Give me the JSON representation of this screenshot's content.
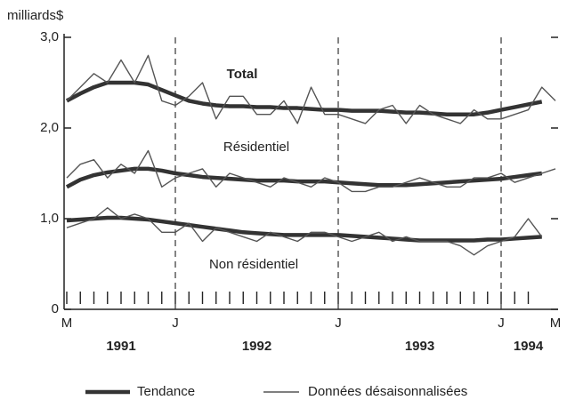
{
  "chart_data": {
    "type": "line",
    "ylabel": "milliards$",
    "categories": [
      "M",
      null,
      null,
      null,
      null,
      null,
      null,
      null,
      "J",
      null,
      null,
      null,
      null,
      null,
      null,
      null,
      null,
      null,
      null,
      null,
      "J",
      null,
      null,
      null,
      null,
      null,
      null,
      null,
      null,
      null,
      null,
      null,
      "J",
      null,
      null,
      null,
      "M"
    ],
    "years": [
      "1991",
      "1992",
      "1993",
      "1994"
    ],
    "annotations": [
      "Total",
      "Résidentiel",
      "Non résidentiel"
    ],
    "ylim": [
      0,
      3
    ],
    "yticks": [
      0,
      {
        "value": 1,
        "label": "1,0"
      },
      {
        "value": 2,
        "label": "2,0"
      },
      {
        "value": 3,
        "label": "3,0"
      }
    ],
    "series": [
      {
        "name": "Tendance",
        "color": "#333333",
        "values": [
          2.3,
          2.38,
          2.45,
          2.5,
          2.5,
          2.5,
          2.48,
          2.42,
          2.36,
          2.3,
          2.27,
          2.25,
          2.24,
          2.24,
          2.23,
          2.23,
          2.22,
          2.22,
          2.21,
          2.2,
          2.2,
          2.19,
          2.19,
          2.19,
          2.18,
          2.17,
          2.17,
          2.16,
          2.15,
          2.15,
          2.15,
          2.17,
          2.2,
          2.23,
          2.26,
          2.29,
          null
        ]
      },
      {
        "name": "Données désaisonnalisées",
        "color": "#555555",
        "values": [
          2.3,
          2.45,
          2.6,
          2.5,
          2.75,
          2.5,
          2.8,
          2.3,
          2.25,
          2.35,
          2.5,
          2.1,
          2.35,
          2.35,
          2.15,
          2.15,
          2.3,
          2.05,
          2.45,
          2.15,
          2.15,
          2.1,
          2.05,
          2.2,
          2.25,
          2.05,
          2.25,
          2.15,
          2.1,
          2.05,
          2.2,
          2.1,
          2.1,
          2.15,
          2.2,
          2.45,
          2.3
        ]
      },
      {
        "name": "Tendance",
        "color": "#333333",
        "values": [
          1.35,
          1.43,
          1.48,
          1.51,
          1.53,
          1.55,
          1.55,
          1.53,
          1.5,
          1.48,
          1.46,
          1.45,
          1.44,
          1.43,
          1.42,
          1.42,
          1.42,
          1.41,
          1.41,
          1.41,
          1.4,
          1.39,
          1.38,
          1.37,
          1.37,
          1.37,
          1.38,
          1.39,
          1.4,
          1.41,
          1.42,
          1.43,
          1.44,
          1.46,
          1.48,
          1.5,
          null
        ]
      },
      {
        "name": "Données désaisonnalisées",
        "color": "#555555",
        "values": [
          1.45,
          1.6,
          1.65,
          1.45,
          1.6,
          1.5,
          1.75,
          1.35,
          1.45,
          1.5,
          1.55,
          1.35,
          1.5,
          1.45,
          1.4,
          1.35,
          1.45,
          1.4,
          1.35,
          1.45,
          1.4,
          1.3,
          1.3,
          1.35,
          1.35,
          1.4,
          1.45,
          1.4,
          1.35,
          1.35,
          1.45,
          1.45,
          1.5,
          1.4,
          1.45,
          1.5,
          1.55
        ]
      },
      {
        "name": "Tendance",
        "color": "#333333",
        "values": [
          0.98,
          0.99,
          1.0,
          1.01,
          1.01,
          1.0,
          0.99,
          0.97,
          0.95,
          0.93,
          0.91,
          0.89,
          0.87,
          0.85,
          0.84,
          0.83,
          0.82,
          0.82,
          0.82,
          0.82,
          0.82,
          0.81,
          0.8,
          0.79,
          0.78,
          0.77,
          0.76,
          0.76,
          0.76,
          0.76,
          0.76,
          0.77,
          0.77,
          0.78,
          0.79,
          0.8,
          null
        ]
      },
      {
        "name": "Données désaisonnalisées",
        "color": "#555555",
        "values": [
          0.9,
          0.95,
          1.0,
          1.12,
          1.0,
          1.05,
          1.0,
          0.85,
          0.85,
          0.95,
          0.75,
          0.9,
          0.85,
          0.8,
          0.75,
          0.85,
          0.8,
          0.75,
          0.85,
          0.85,
          0.8,
          0.75,
          0.8,
          0.85,
          0.75,
          0.8,
          0.75,
          0.75,
          0.75,
          0.7,
          0.6,
          0.7,
          0.75,
          0.8,
          1.0,
          0.8,
          null
        ]
      }
    ]
  }
}
